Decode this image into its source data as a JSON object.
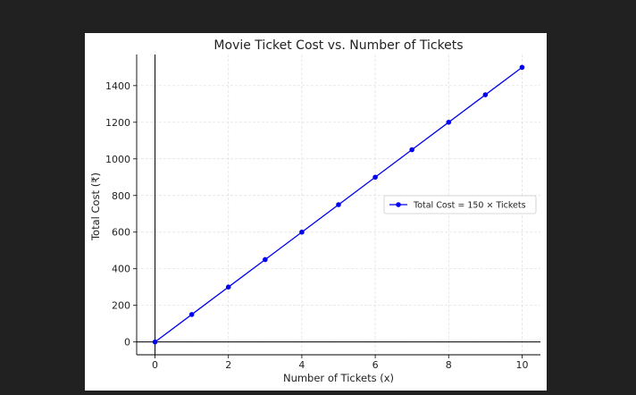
{
  "chart_data": {
    "type": "line",
    "title": "Movie Ticket Cost vs. Number of Tickets",
    "xlabel": "Number of Tickets (x)",
    "ylabel": "Total Cost (₹)",
    "xlim": [
      -0.5,
      10.5
    ],
    "ylim": [
      -70,
      1570
    ],
    "x_ticks": [
      0,
      2,
      4,
      6,
      8,
      10
    ],
    "y_ticks": [
      0,
      200,
      400,
      600,
      800,
      1000,
      1200,
      1400
    ],
    "grid": true,
    "legend_position": "center-right",
    "series": [
      {
        "name": "Total Cost = 150 × Tickets",
        "color": "#0000ee",
        "marker": "circle",
        "x": [
          0,
          1,
          2,
          3,
          4,
          5,
          6,
          7,
          8,
          9,
          10
        ],
        "y": [
          0,
          150,
          300,
          450,
          600,
          750,
          900,
          1050,
          1200,
          1350,
          1500
        ]
      }
    ],
    "reference_lines": [
      {
        "axis": "x",
        "value": 0,
        "color": "#000000"
      },
      {
        "axis": "y",
        "value": 0,
        "color": "#000000"
      }
    ]
  }
}
